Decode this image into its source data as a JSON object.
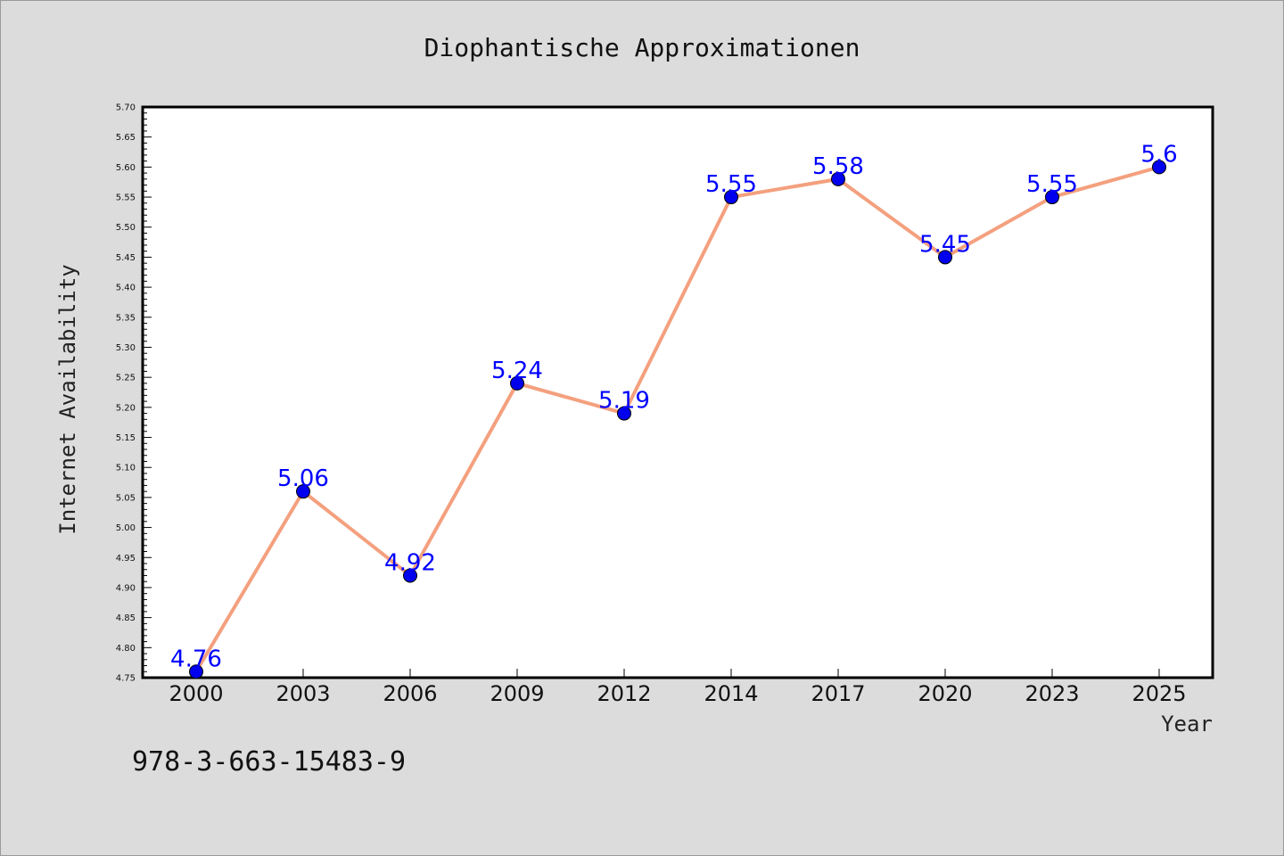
{
  "chart_data": {
    "type": "line",
    "title": "Diophantische Approximationen",
    "xlabel": "Year",
    "ylabel": "Internet Availability",
    "categories": [
      "2000",
      "2003",
      "2006",
      "2009",
      "2012",
      "2014",
      "2017",
      "2020",
      "2023",
      "2025"
    ],
    "series": [
      {
        "values": [
          4.76,
          5.06,
          4.92,
          5.24,
          5.19,
          5.55,
          5.58,
          5.45,
          5.55,
          5.6
        ],
        "data_labels": [
          "4.76",
          "5.06",
          "4.92",
          "5.24",
          "5.19",
          "5.55",
          "5.58",
          "5.45",
          "5.55",
          "5.6"
        ],
        "line_color": "#f4a07e",
        "marker_color": "#0000ee"
      }
    ],
    "ylim": [
      4.75,
      5.7
    ],
    "yticks": [
      "4.75",
      "4.80",
      "4.85",
      "4.90",
      "4.95",
      "5.00",
      "5.05",
      "5.10",
      "5.15",
      "5.20",
      "5.25",
      "5.30",
      "5.35",
      "5.40",
      "5.45",
      "5.50",
      "5.55",
      "5.60",
      "5.65",
      "5.70"
    ],
    "grid": false,
    "legend": "none",
    "data_label_color": "#0000ff"
  },
  "footer": {
    "isbn": "978-3-663-15483-9"
  },
  "colors": {
    "background": "#dcdcdc",
    "plot_background": "#ffffff"
  }
}
